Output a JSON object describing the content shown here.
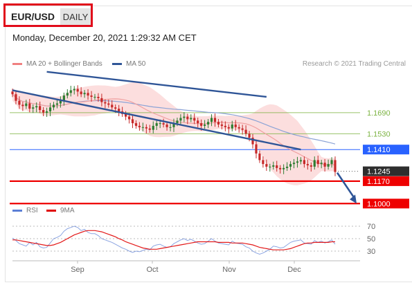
{
  "header": {
    "pair": "EUR/USD",
    "timeframe": "DAILY",
    "datetime": "Monday, December 20, 2021 1:29:32 AM CET"
  },
  "legend": {
    "ma20": "MA 20 + Bollinger Bands",
    "ma50": "MA 50",
    "rsi": "RSI",
    "ma9": "9MA",
    "research": "Research © 2021 Trading Central"
  },
  "colors": {
    "ma20": "#f08080",
    "ma50": "#2f5597",
    "rsi": "#5b7fd6",
    "ma9": "#e00000",
    "resistance_green": "#7cb342",
    "pivot_blue": "#2962ff",
    "support_red": "#ee0000",
    "trend_line": "#2f5597"
  },
  "chart_data": [
    {
      "type": "candlestick",
      "title": "",
      "x_labels": [
        "Sep",
        "Oct",
        "Nov",
        "Dec"
      ],
      "levels": [
        {
          "value": 1.169,
          "label": "1.1690",
          "kind": "resistance"
        },
        {
          "value": 1.153,
          "label": "1.1530",
          "kind": "resistance"
        },
        {
          "value": 1.141,
          "label": "1.1410",
          "kind": "pivot"
        },
        {
          "value": 1.1245,
          "label": "1.1245",
          "kind": "last_price"
        },
        {
          "value": 1.117,
          "label": "1.1170",
          "kind": "support"
        },
        {
          "value": 1.1,
          "label": "1.1000",
          "kind": "support"
        }
      ],
      "candles_close_approx": [
        1.183,
        1.178,
        1.175,
        1.174,
        1.176,
        1.172,
        1.173,
        1.174,
        1.171,
        1.169,
        1.17,
        1.173,
        1.175,
        1.176,
        1.178,
        1.182,
        1.184,
        1.186,
        1.187,
        1.185,
        1.183,
        1.184,
        1.182,
        1.181,
        1.181,
        1.18,
        1.177,
        1.176,
        1.175,
        1.173,
        1.172,
        1.17,
        1.168,
        1.166,
        1.164,
        1.161,
        1.159,
        1.158,
        1.158,
        1.157,
        1.156,
        1.159,
        1.161,
        1.161,
        1.16,
        1.158,
        1.158,
        1.161,
        1.163,
        1.165,
        1.166,
        1.164,
        1.165,
        1.163,
        1.161,
        1.159,
        1.16,
        1.162,
        1.165,
        1.162,
        1.16,
        1.159,
        1.158,
        1.157,
        1.16,
        1.158,
        1.157,
        1.156,
        1.153,
        1.15,
        1.145,
        1.138,
        1.133,
        1.13,
        1.128,
        1.128,
        1.129,
        1.127,
        1.126,
        1.127,
        1.128,
        1.13,
        1.131,
        1.132,
        1.133,
        1.13,
        1.129,
        1.128,
        1.133,
        1.13,
        1.131,
        1.128,
        1.13,
        1.133,
        1.124
      ],
      "ylim": [
        1.097,
        1.202
      ]
    },
    {
      "type": "line",
      "title": "",
      "y_ticks": [
        70,
        50,
        30
      ],
      "ylim": [
        20,
        80
      ],
      "series": [
        {
          "name": "RSI",
          "values": [
            51,
            47,
            42,
            40,
            38,
            44,
            40,
            44,
            37,
            35,
            36,
            43,
            50,
            52,
            55,
            62,
            66,
            68,
            70,
            68,
            63,
            65,
            60,
            58,
            58,
            55,
            50,
            48,
            46,
            44,
            41,
            38,
            35,
            33,
            30,
            28,
            30,
            29,
            31,
            33,
            32,
            38,
            40,
            41,
            38,
            36,
            37,
            42,
            45,
            48,
            50,
            47,
            49,
            46,
            43,
            41,
            42,
            46,
            50,
            46,
            43,
            42,
            41,
            40,
            46,
            43,
            42,
            41,
            37,
            35,
            30,
            27,
            25,
            27,
            30,
            33,
            38,
            37,
            35,
            36,
            40,
            44,
            46,
            47,
            48,
            43,
            42,
            41,
            47,
            44,
            46,
            43,
            45,
            48,
            41
          ]
        },
        {
          "name": "9MA",
          "values": [
            48,
            48,
            47,
            46,
            45,
            44,
            43,
            42,
            41,
            40,
            39,
            39,
            40,
            42,
            44,
            47,
            50,
            53,
            56,
            58,
            60,
            62,
            63,
            63,
            63,
            62,
            61,
            59,
            57,
            55,
            53,
            50,
            48,
            45,
            43,
            41,
            39,
            37,
            35,
            34,
            33,
            33,
            33,
            34,
            35,
            36,
            37,
            38,
            39,
            40,
            41,
            42,
            43,
            44,
            45,
            45,
            45,
            45,
            45,
            45,
            44,
            44,
            44,
            44,
            43,
            43,
            43,
            43,
            42,
            41,
            40,
            38,
            36,
            35,
            34,
            33,
            32,
            32,
            32,
            32,
            33,
            34,
            36,
            38,
            40,
            42,
            43,
            43,
            44,
            44,
            44,
            44,
            44,
            45,
            45
          ]
        }
      ]
    }
  ]
}
